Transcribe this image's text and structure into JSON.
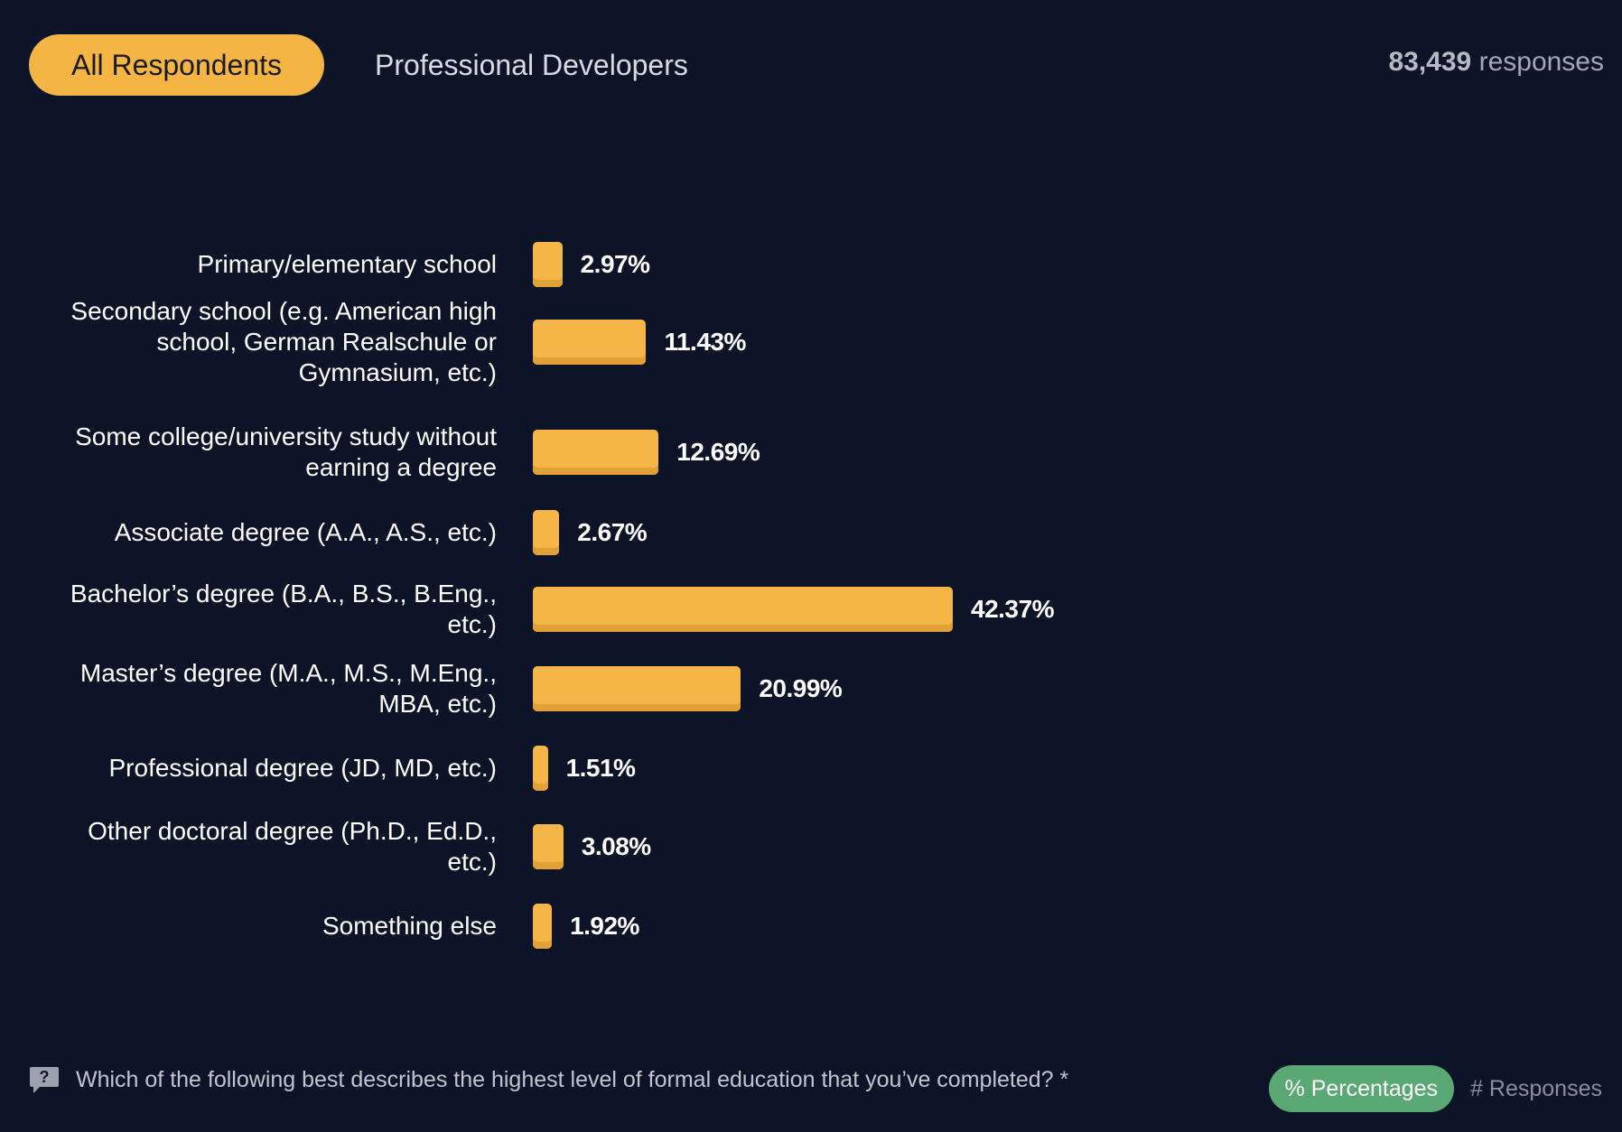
{
  "header": {
    "tabs": [
      {
        "label": "All Respondents",
        "active": true
      },
      {
        "label": "Professional Developers",
        "active": false
      }
    ],
    "responses_number": "83,439",
    "responses_word": "responses"
  },
  "chart_data": {
    "type": "bar",
    "orientation": "horizontal",
    "categories": [
      "Primary/elementary school",
      "Secondary school (e.g. American high school, German Realschule or Gymnasium, etc.)",
      "Some college/university study without earning a degree",
      "Associate degree (A.A., A.S., etc.)",
      "Bachelor’s degree (B.A., B.S., B.Eng., etc.)",
      "Master’s degree (M.A., M.S., M.Eng., MBA, etc.)",
      "Professional degree (JD, MD, etc.)",
      "Other doctoral degree (Ph.D., Ed.D., etc.)",
      "Something else"
    ],
    "values": [
      2.97,
      11.43,
      12.69,
      2.67,
      42.37,
      20.99,
      1.51,
      3.08,
      1.92
    ],
    "value_labels": [
      "2.97%",
      "11.43%",
      "12.69%",
      "2.67%",
      "42.37%",
      "20.99%",
      "1.51%",
      "3.08%",
      "1.92%"
    ],
    "unit": "%",
    "bar_color": "#f5b647",
    "xlim": [
      0,
      42.37
    ]
  },
  "footer": {
    "question": "Which of the following best describes the highest level of formal education that you’ve completed? *",
    "question_icon": "question-icon",
    "toggle_active": "% Percentages",
    "toggle_inactive": "# Responses"
  },
  "colors": {
    "background": "#0e1428",
    "accent": "#f4b545",
    "toggle_green": "#5aa874"
  }
}
